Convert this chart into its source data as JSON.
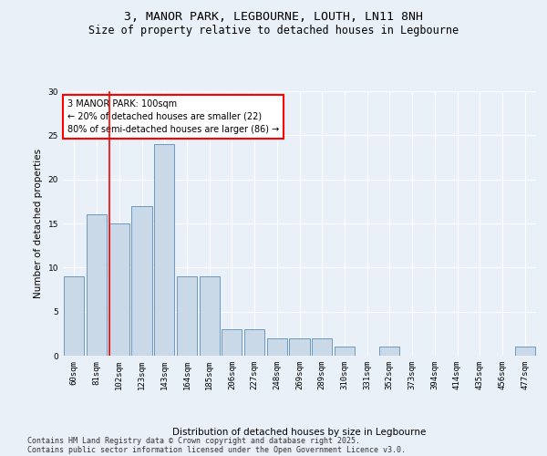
{
  "title": "3, MANOR PARK, LEGBOURNE, LOUTH, LN11 8NH",
  "subtitle": "Size of property relative to detached houses in Legbourne",
  "xlabel": "Distribution of detached houses by size in Legbourne",
  "ylabel": "Number of detached properties",
  "categories": [
    "60sqm",
    "81sqm",
    "102sqm",
    "123sqm",
    "143sqm",
    "164sqm",
    "185sqm",
    "206sqm",
    "227sqm",
    "248sqm",
    "269sqm",
    "289sqm",
    "310sqm",
    "331sqm",
    "352sqm",
    "373sqm",
    "394sqm",
    "414sqm",
    "435sqm",
    "456sqm",
    "477sqm"
  ],
  "values": [
    9,
    16,
    15,
    17,
    24,
    9,
    9,
    3,
    3,
    2,
    2,
    2,
    1,
    0,
    1,
    0,
    0,
    0,
    0,
    0,
    1
  ],
  "bar_color": "#c9d9e8",
  "bar_edge_color": "#5b8db8",
  "red_line_index": 2,
  "annotation_title": "3 MANOR PARK: 100sqm",
  "annotation_line1": "← 20% of detached houses are smaller (22)",
  "annotation_line2": "80% of semi-detached houses are larger (86) →",
  "annotation_box_color": "white",
  "annotation_box_edge_color": "red",
  "ylim": [
    0,
    30
  ],
  "yticks": [
    0,
    5,
    10,
    15,
    20,
    25,
    30
  ],
  "bg_color": "#eaf0f8",
  "plot_bg_color": "#eaf0f8",
  "footer_line1": "Contains HM Land Registry data © Crown copyright and database right 2025.",
  "footer_line2": "Contains public sector information licensed under the Open Government Licence v3.0.",
  "title_fontsize": 9.5,
  "subtitle_fontsize": 8.5,
  "axis_label_fontsize": 7.5,
  "tick_fontsize": 6.5,
  "annotation_fontsize": 7,
  "footer_fontsize": 6
}
